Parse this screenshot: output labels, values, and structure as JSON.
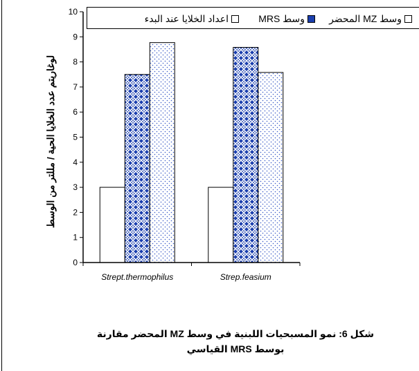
{
  "chart_data": {
    "type": "bar",
    "categories": [
      "Strept.thermophilus",
      "Strep.feasium"
    ],
    "series": [
      {
        "name": "اعداد الخلايا عند البدء",
        "values": [
          3.0,
          3.0
        ],
        "fill": "plain",
        "color": "#ffffff"
      },
      {
        "name": "وسط MRS",
        "values": [
          7.5,
          8.58
        ],
        "fill": "blue-weave",
        "color": "#1b3fae"
      },
      {
        "name": "وسط MZ المحضر",
        "values": [
          8.77,
          7.58
        ],
        "fill": "dots",
        "color": "#3a5bc7"
      }
    ],
    "ylabel": "لوغاريتم عدد الخلايا الحية / مللتر من الوسط",
    "xlabel": "",
    "ylim": [
      0,
      10
    ],
    "yticks": [
      0,
      1,
      2,
      3,
      4,
      5,
      6,
      7,
      8,
      9,
      10
    ],
    "grid": false,
    "legend_position": "top"
  },
  "legend": {
    "items": [
      {
        "label": "وسط MZ المحضر",
        "fill": "dots"
      },
      {
        "label": "وسط MRS",
        "fill": "blue-weave"
      },
      {
        "label": "اعداد الخلايا عند البدء",
        "fill": "plain"
      }
    ]
  },
  "caption": {
    "line1": "شكل 6: نمو المسبحيات اللبنية في وسط MZ المحضر مقارنة",
    "line2": "بوسط MRS القياسي"
  }
}
